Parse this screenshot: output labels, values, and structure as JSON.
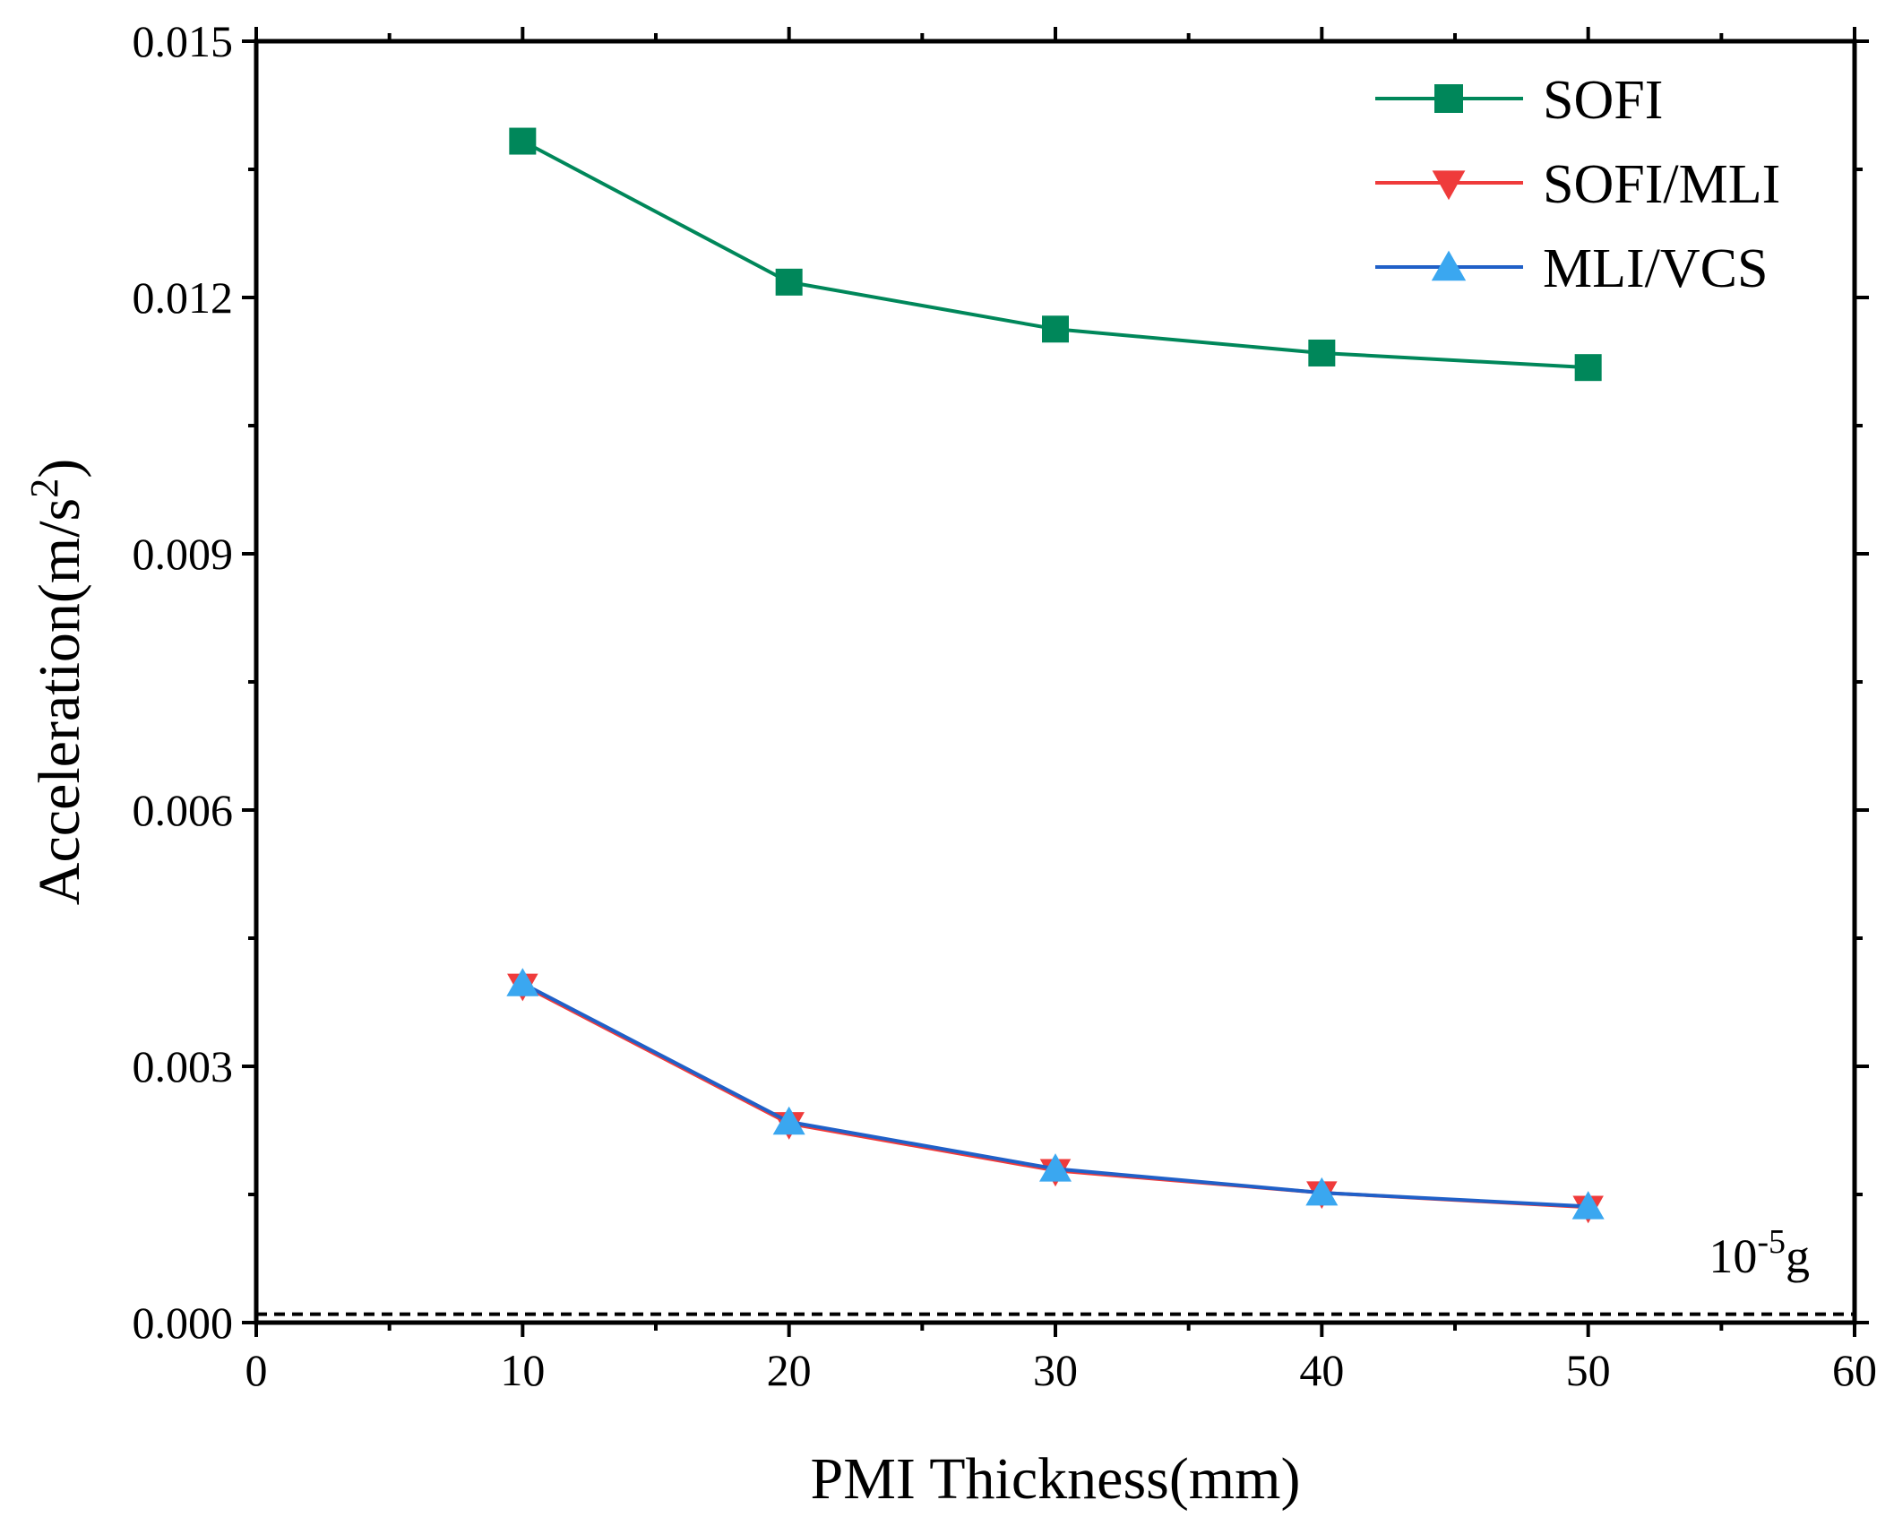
{
  "chart_data": {
    "type": "line",
    "title": "",
    "xlabel": "PMI Thickness(mm)",
    "ylabel_main": "Acceleration(m/s",
    "ylabel_sup": "2",
    "ylabel_close": ")",
    "xlim": [
      0,
      60
    ],
    "ylim": [
      0,
      0.015
    ],
    "x_ticks": [
      0,
      10,
      20,
      30,
      40,
      50,
      60
    ],
    "x_tick_labels": [
      "0",
      "10",
      "20",
      "30",
      "40",
      "50",
      "60"
    ],
    "y_ticks": [
      0,
      0.003,
      0.006,
      0.009,
      0.012,
      0.015
    ],
    "y_tick_labels": [
      "0.000",
      "0.003",
      "0.006",
      "0.009",
      "0.012",
      "0.015"
    ],
    "grid": false,
    "legend_position": "top-right",
    "x": [
      10,
      20,
      30,
      40,
      50
    ],
    "series": [
      {
        "name": "SOFI",
        "marker": "square",
        "color": "#00875a",
        "values": [
          0.01383,
          0.01218,
          0.01163,
          0.01135,
          0.01118
        ]
      },
      {
        "name": "SOFI/MLI",
        "marker": "triangle-down",
        "color": "#ef3b3b",
        "values": [
          0.00395,
          0.00233,
          0.00178,
          0.00152,
          0.00135
        ]
      },
      {
        "name": "MLI/VCS",
        "marker": "triangle-up",
        "color": "#3aa7f0",
        "line_color": "#2060c8",
        "values": [
          0.00397,
          0.00235,
          0.0018,
          0.00152,
          0.00136
        ]
      }
    ],
    "reference_line": {
      "value": 9.8e-05,
      "style": "dashed",
      "label_base": "10",
      "label_sup": "-5",
      "label_unit": "g"
    }
  }
}
